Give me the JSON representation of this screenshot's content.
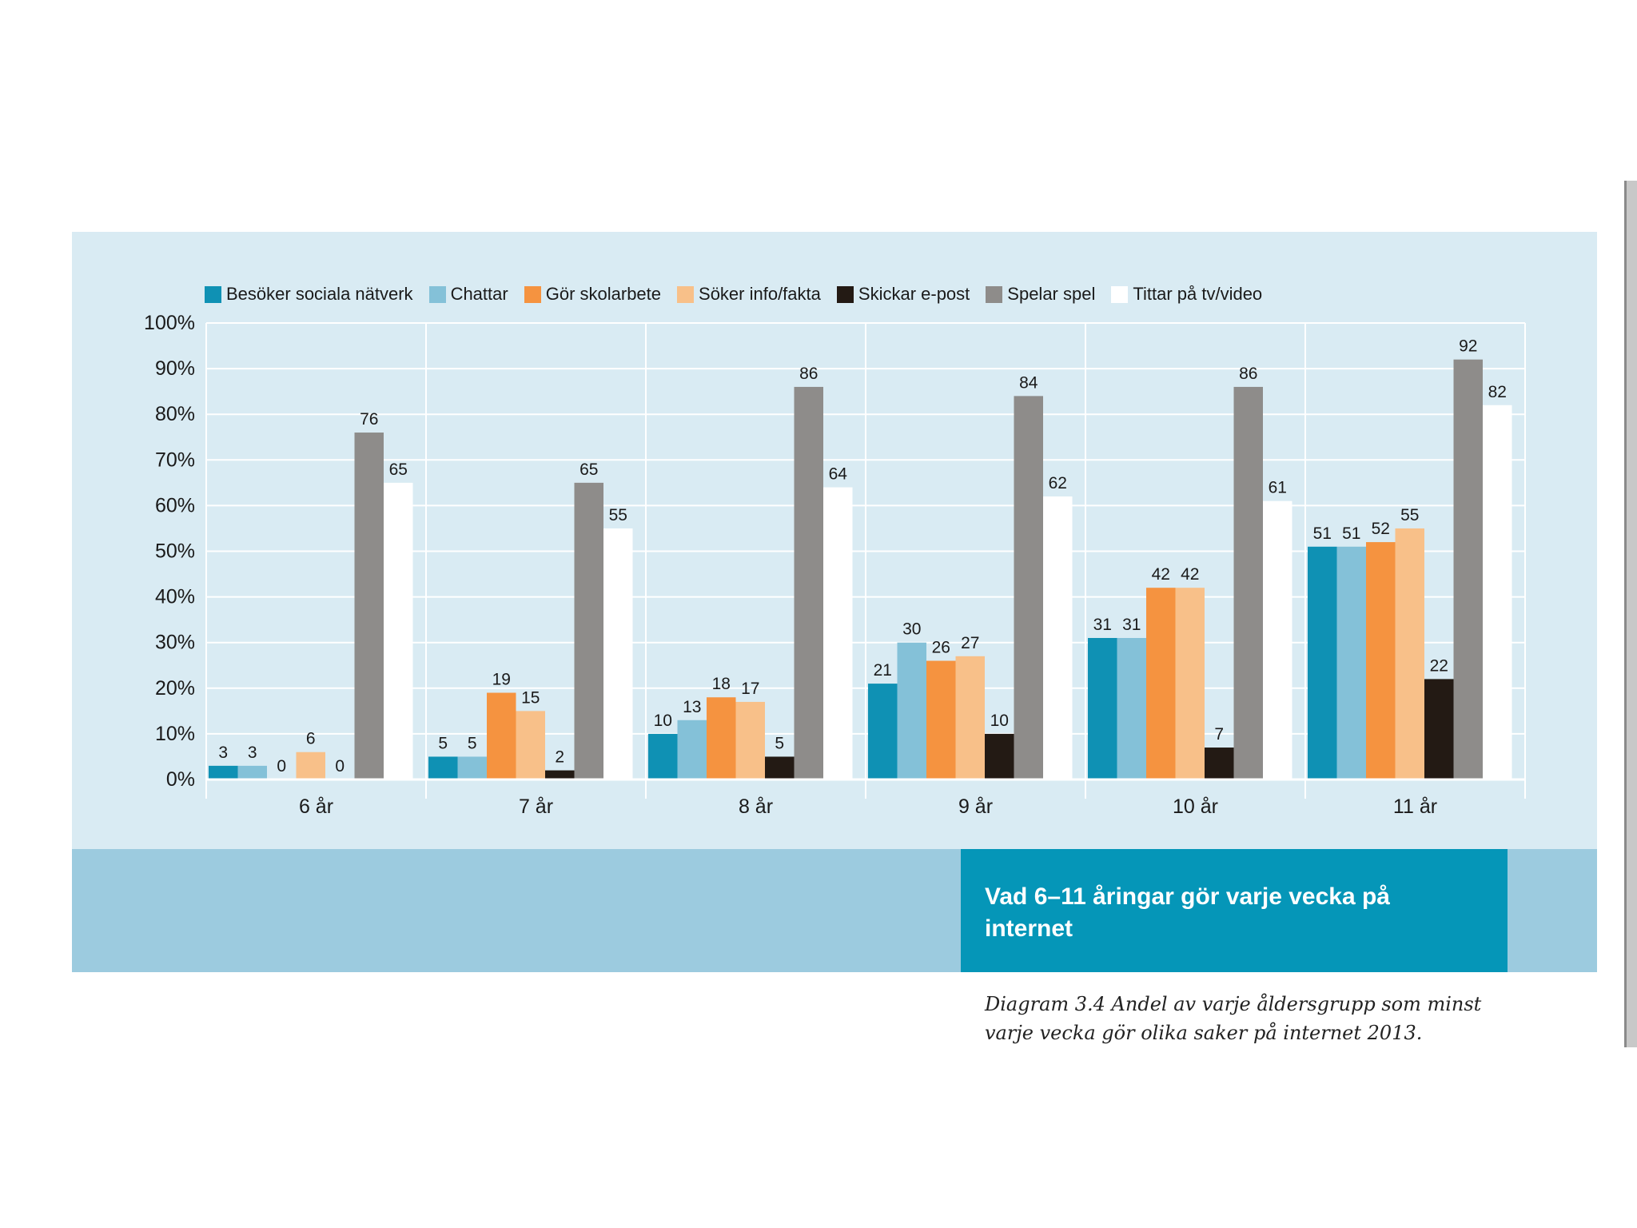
{
  "chart_data": {
    "type": "bar",
    "title": "Vad 6–11 åringar gör varje vecka på internet",
    "caption": "Diagram 3.4 Andel av varje åldersgrupp som minst varje vecka gör olika saker på internet 2013.",
    "categories": [
      "6 år",
      "7 år",
      "8 år",
      "9 år",
      "10 år",
      "11 år"
    ],
    "ylim": [
      0,
      100
    ],
    "yticks": [
      "0%",
      "10%",
      "20%",
      "30%",
      "40%",
      "50%",
      "60%",
      "70%",
      "80%",
      "90%",
      "100%"
    ],
    "xlabel": "",
    "ylabel": "",
    "grid": true,
    "legend_position": "top",
    "series": [
      {
        "name": "Besöker sociala nätverk",
        "color": "#0f91b4",
        "values": [
          3,
          5,
          10,
          21,
          31,
          51
        ]
      },
      {
        "name": "Chattar",
        "color": "#84c1d8",
        "values": [
          3,
          5,
          13,
          30,
          31,
          51
        ]
      },
      {
        "name": "Gör skolarbete",
        "color": "#f59340",
        "values": [
          0,
          19,
          18,
          26,
          42,
          52
        ]
      },
      {
        "name": "Söker info/fakta",
        "color": "#f8c089",
        "values": [
          6,
          15,
          17,
          27,
          42,
          55
        ]
      },
      {
        "name": "Skickar e-post",
        "color": "#231a14",
        "values": [
          0,
          2,
          5,
          10,
          7,
          22
        ]
      },
      {
        "name": "Spelar spel",
        "color": "#8e8c8a",
        "values": [
          76,
          65,
          86,
          84,
          86,
          92
        ]
      },
      {
        "name": "Tittar på tv/video",
        "color": "#ffffff",
        "values": [
          65,
          55,
          64,
          62,
          61,
          82
        ]
      }
    ]
  }
}
